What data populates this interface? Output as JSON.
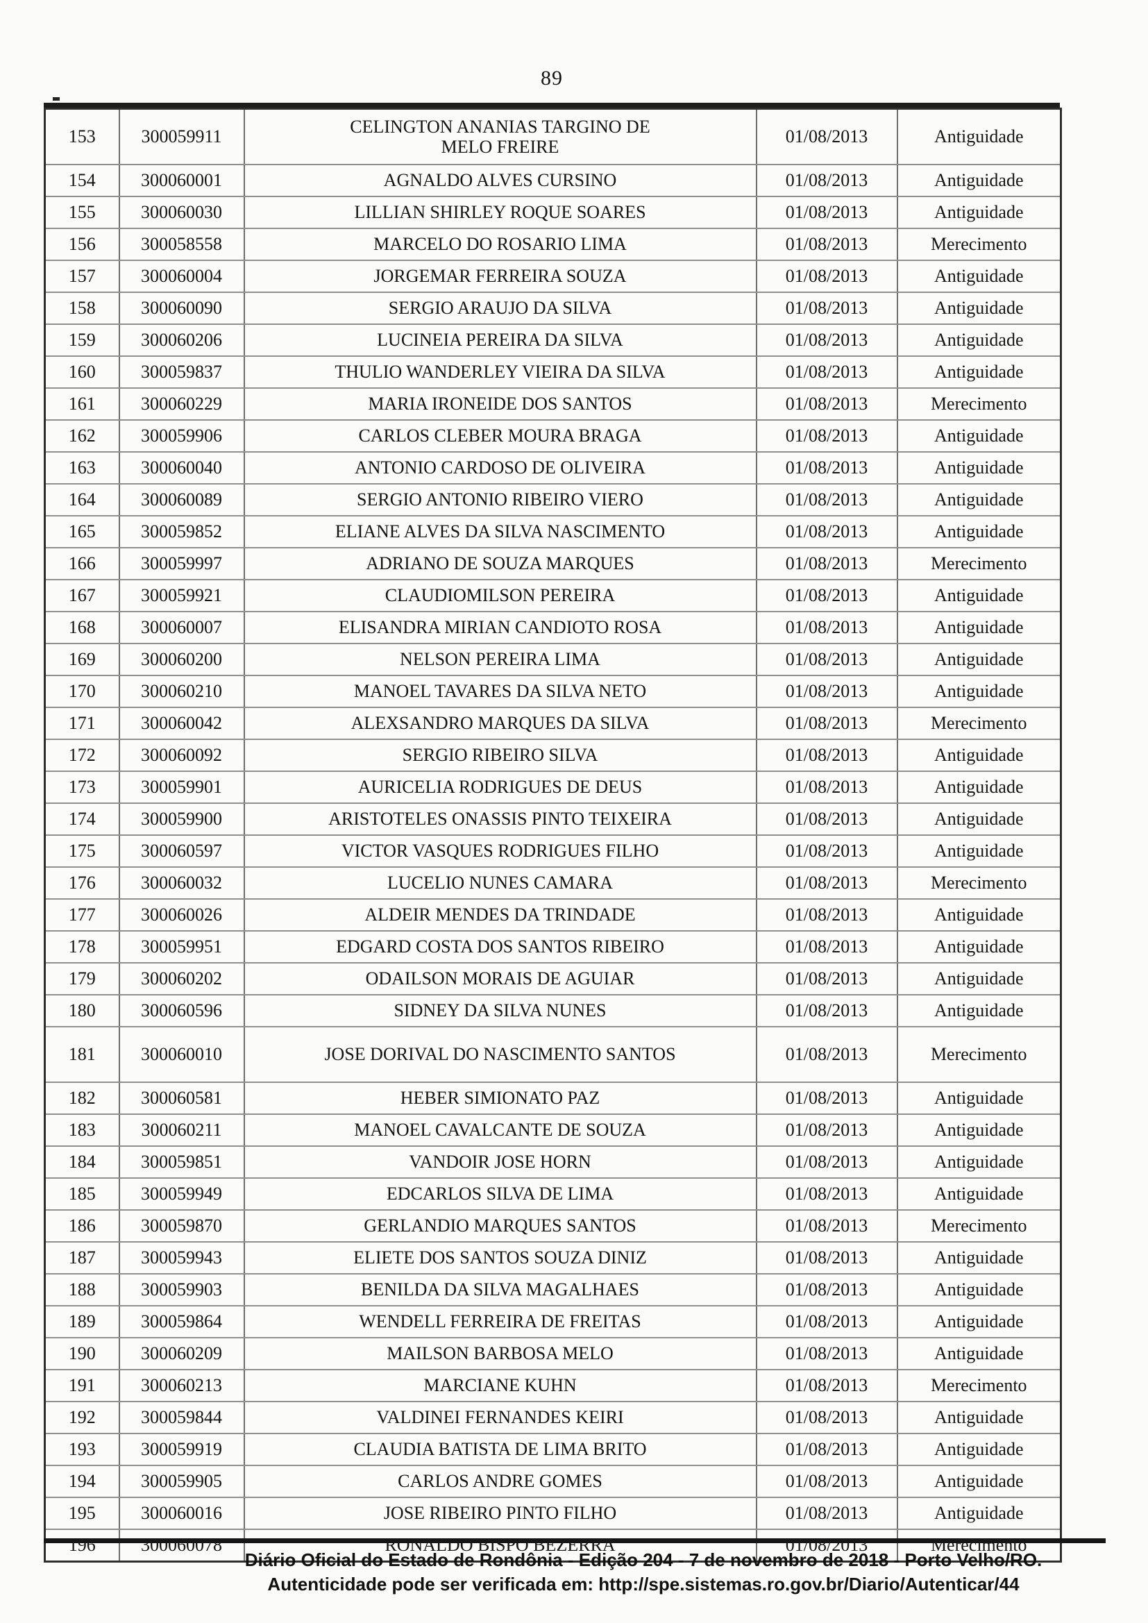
{
  "page": {
    "number": "89"
  },
  "table": {
    "rows": [
      {
        "pos": "153",
        "reg": "300059911",
        "name": "CELINGTON ANANIAS TARGINO DE MELO FREIRE",
        "date": "01/08/2013",
        "type": "Antiguidade",
        "tall": true
      },
      {
        "pos": "154",
        "reg": "300060001",
        "name": "AGNALDO ALVES CURSINO",
        "date": "01/08/2013",
        "type": "Antiguidade"
      },
      {
        "pos": "155",
        "reg": "300060030",
        "name": "LILLIAN SHIRLEY ROQUE SOARES",
        "date": "01/08/2013",
        "type": "Antiguidade"
      },
      {
        "pos": "156",
        "reg": "300058558",
        "name": "MARCELO DO ROSARIO LIMA",
        "date": "01/08/2013",
        "type": "Merecimento"
      },
      {
        "pos": "157",
        "reg": "300060004",
        "name": "JORGEMAR FERREIRA SOUZA",
        "date": "01/08/2013",
        "type": "Antiguidade"
      },
      {
        "pos": "158",
        "reg": "300060090",
        "name": "SERGIO ARAUJO DA SILVA",
        "date": "01/08/2013",
        "type": "Antiguidade"
      },
      {
        "pos": "159",
        "reg": "300060206",
        "name": "LUCINEIA PEREIRA DA SILVA",
        "date": "01/08/2013",
        "type": "Antiguidade"
      },
      {
        "pos": "160",
        "reg": "300059837",
        "name": "THULIO WANDERLEY VIEIRA DA SILVA",
        "date": "01/08/2013",
        "type": "Antiguidade"
      },
      {
        "pos": "161",
        "reg": "300060229",
        "name": "MARIA IRONEIDE DOS SANTOS",
        "date": "01/08/2013",
        "type": "Merecimento"
      },
      {
        "pos": "162",
        "reg": "300059906",
        "name": "CARLOS CLEBER MOURA BRAGA",
        "date": "01/08/2013",
        "type": "Antiguidade"
      },
      {
        "pos": "163",
        "reg": "300060040",
        "name": "ANTONIO CARDOSO DE OLIVEIRA",
        "date": "01/08/2013",
        "type": "Antiguidade"
      },
      {
        "pos": "164",
        "reg": "300060089",
        "name": "SERGIO ANTONIO RIBEIRO VIERO",
        "date": "01/08/2013",
        "type": "Antiguidade"
      },
      {
        "pos": "165",
        "reg": "300059852",
        "name": "ELIANE ALVES DA SILVA NASCIMENTO",
        "date": "01/08/2013",
        "type": "Antiguidade"
      },
      {
        "pos": "166",
        "reg": "300059997",
        "name": "ADRIANO DE SOUZA MARQUES",
        "date": "01/08/2013",
        "type": "Merecimento"
      },
      {
        "pos": "167",
        "reg": "300059921",
        "name": "CLAUDIOMILSON PEREIRA",
        "date": "01/08/2013",
        "type": "Antiguidade"
      },
      {
        "pos": "168",
        "reg": "300060007",
        "name": "ELISANDRA MIRIAN CANDIOTO ROSA",
        "date": "01/08/2013",
        "type": "Antiguidade"
      },
      {
        "pos": "169",
        "reg": "300060200",
        "name": "NELSON PEREIRA LIMA",
        "date": "01/08/2013",
        "type": "Antiguidade"
      },
      {
        "pos": "170",
        "reg": "300060210",
        "name": "MANOEL TAVARES DA SILVA NETO",
        "date": "01/08/2013",
        "type": "Antiguidade"
      },
      {
        "pos": "171",
        "reg": "300060042",
        "name": "ALEXSANDRO MARQUES DA SILVA",
        "date": "01/08/2013",
        "type": "Merecimento"
      },
      {
        "pos": "172",
        "reg": "300060092",
        "name": "SERGIO RIBEIRO SILVA",
        "date": "01/08/2013",
        "type": "Antiguidade"
      },
      {
        "pos": "173",
        "reg": "300059901",
        "name": "AURICELIA RODRIGUES DE DEUS",
        "date": "01/08/2013",
        "type": "Antiguidade"
      },
      {
        "pos": "174",
        "reg": "300059900",
        "name": "ARISTOTELES ONASSIS PINTO TEIXEIRA",
        "date": "01/08/2013",
        "type": "Antiguidade"
      },
      {
        "pos": "175",
        "reg": "300060597",
        "name": "VICTOR VASQUES RODRIGUES FILHO",
        "date": "01/08/2013",
        "type": "Antiguidade"
      },
      {
        "pos": "176",
        "reg": "300060032",
        "name": "LUCELIO NUNES CAMARA",
        "date": "01/08/2013",
        "type": "Merecimento"
      },
      {
        "pos": "177",
        "reg": "300060026",
        "name": "ALDEIR MENDES DA TRINDADE",
        "date": "01/08/2013",
        "type": "Antiguidade"
      },
      {
        "pos": "178",
        "reg": "300059951",
        "name": "EDGARD COSTA DOS SANTOS RIBEIRO",
        "date": "01/08/2013",
        "type": "Antiguidade"
      },
      {
        "pos": "179",
        "reg": "300060202",
        "name": "ODAILSON MORAIS DE AGUIAR",
        "date": "01/08/2013",
        "type": "Antiguidade"
      },
      {
        "pos": "180",
        "reg": "300060596",
        "name": "SIDNEY DA SILVA NUNES",
        "date": "01/08/2013",
        "type": "Antiguidade"
      },
      {
        "pos": "181",
        "reg": "300060010",
        "name": "JOSE DORIVAL DO NASCIMENTO SANTOS",
        "date": "01/08/2013",
        "type": "Merecimento",
        "tall": true
      },
      {
        "pos": "182",
        "reg": "300060581",
        "name": "HEBER SIMIONATO PAZ",
        "date": "01/08/2013",
        "type": "Antiguidade"
      },
      {
        "pos": "183",
        "reg": "300060211",
        "name": "MANOEL CAVALCANTE DE SOUZA",
        "date": "01/08/2013",
        "type": "Antiguidade"
      },
      {
        "pos": "184",
        "reg": "300059851",
        "name": "VANDOIR JOSE HORN",
        "date": "01/08/2013",
        "type": "Antiguidade"
      },
      {
        "pos": "185",
        "reg": "300059949",
        "name": "EDCARLOS SILVA DE LIMA",
        "date": "01/08/2013",
        "type": "Antiguidade"
      },
      {
        "pos": "186",
        "reg": "300059870",
        "name": "GERLANDIO MARQUES SANTOS",
        "date": "01/08/2013",
        "type": "Merecimento"
      },
      {
        "pos": "187",
        "reg": "300059943",
        "name": "ELIETE DOS SANTOS SOUZA DINIZ",
        "date": "01/08/2013",
        "type": "Antiguidade"
      },
      {
        "pos": "188",
        "reg": "300059903",
        "name": "BENILDA DA SILVA MAGALHAES",
        "date": "01/08/2013",
        "type": "Antiguidade"
      },
      {
        "pos": "189",
        "reg": "300059864",
        "name": "WENDELL FERREIRA DE FREITAS",
        "date": "01/08/2013",
        "type": "Antiguidade"
      },
      {
        "pos": "190",
        "reg": "300060209",
        "name": "MAILSON BARBOSA MELO",
        "date": "01/08/2013",
        "type": "Antiguidade"
      },
      {
        "pos": "191",
        "reg": "300060213",
        "name": "MARCIANE KUHN",
        "date": "01/08/2013",
        "type": "Merecimento"
      },
      {
        "pos": "192",
        "reg": "300059844",
        "name": "VALDINEI FERNANDES KEIRI",
        "date": "01/08/2013",
        "type": "Antiguidade"
      },
      {
        "pos": "193",
        "reg": "300059919",
        "name": "CLAUDIA BATISTA DE LIMA BRITO",
        "date": "01/08/2013",
        "type": "Antiguidade"
      },
      {
        "pos": "194",
        "reg": "300059905",
        "name": "CARLOS ANDRE GOMES",
        "date": "01/08/2013",
        "type": "Antiguidade"
      },
      {
        "pos": "195",
        "reg": "300060016",
        "name": "JOSE RIBEIRO PINTO FILHO",
        "date": "01/08/2013",
        "type": "Antiguidade"
      },
      {
        "pos": "196",
        "reg": "300060078",
        "name": "RONALDO BISPO BEZERRA",
        "date": "01/08/2013",
        "type": "Merecimento"
      }
    ]
  },
  "footer": {
    "line1": "Diário Oficial do Estado de Rondônia - Edição 204 - 7 de novembro de 2018 - Porto Velho/RO.",
    "line2": "Autenticidade pode ser verificada em: http://spe.sistemas.ro.gov.br/Diario/Autenticar/44"
  }
}
